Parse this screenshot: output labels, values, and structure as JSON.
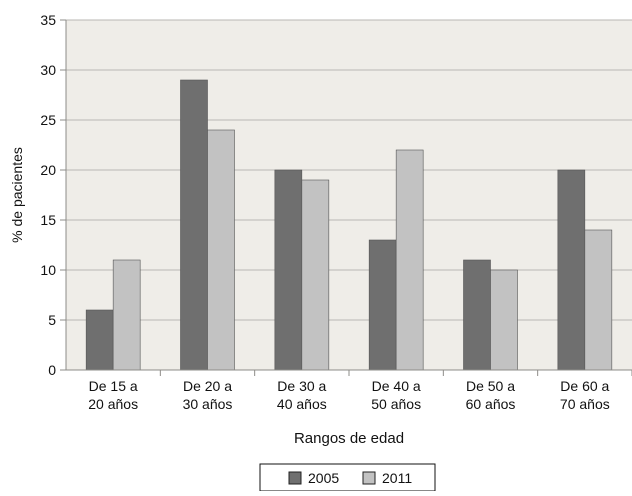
{
  "chart_data": {
    "type": "bar",
    "categories": [
      [
        "De 15 a",
        "20 años"
      ],
      [
        "De 20 a",
        "30 años"
      ],
      [
        "De 30 a",
        "40 años"
      ],
      [
        "De 40 a",
        "50 años"
      ],
      [
        "De 50 a",
        "60 años"
      ],
      [
        "De 60 a",
        "70 años"
      ]
    ],
    "series": [
      {
        "name": "2005",
        "values": [
          6,
          29,
          20,
          13,
          11,
          20
        ],
        "color": "#6f6f6f"
      },
      {
        "name": "2011",
        "values": [
          11,
          24,
          19,
          22,
          10,
          14
        ],
        "color": "#c2c2c2"
      }
    ],
    "title": "",
    "xlabel": "Rangos de edad",
    "ylabel": "% de pacientes",
    "ylim": [
      0,
      35
    ],
    "yticks": [
      0,
      5,
      10,
      15,
      20,
      25,
      30,
      35
    ],
    "grid": true,
    "legend_position": "bottom-center",
    "colors": {
      "plot_background": "#efede8",
      "gridline": "#b9b7b3",
      "axis": "#8e8c88"
    }
  }
}
